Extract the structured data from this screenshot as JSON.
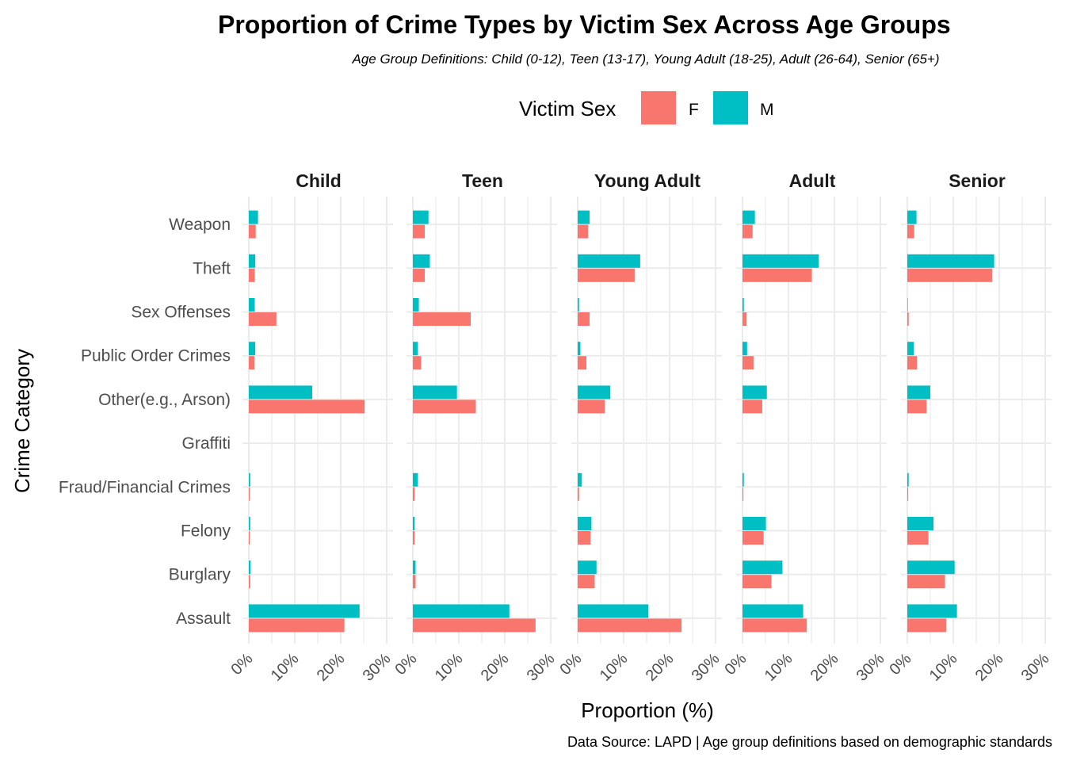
{
  "chart_data": {
    "type": "bar",
    "orientation": "horizontal",
    "faceted": true,
    "title": "Proportion of Crime Types by Victim Sex Across Age Groups",
    "subtitle": "Age Group Definitions: Child (0-12), Teen (13-17), Young Adult (18-25), Adult (26-64), Senior (65+)",
    "caption": "Data Source: LAPD | Age group definitions based on demographic standards",
    "xlabel": "Proportion (%)",
    "ylabel": "Crime Category",
    "xlim": [
      0,
      30
    ],
    "x_ticks": [
      "0%",
      "10%",
      "20%",
      "30%"
    ],
    "x_tick_values": [
      0,
      10,
      20,
      30
    ],
    "grid": true,
    "legend": {
      "title": "Victim Sex",
      "position": "top",
      "entries": [
        {
          "label": "F",
          "color": "#F8766D"
        },
        {
          "label": "M",
          "color": "#00BFC4"
        }
      ]
    },
    "categories": [
      "Weapon",
      "Theft",
      "Sex Offenses",
      "Public Order Crimes",
      "Other(e.g., Arson)",
      "Graffiti",
      "Fraud/Financial Crimes",
      "Felony",
      "Burglary",
      "Assault"
    ],
    "facets": [
      {
        "name": "Child",
        "series": [
          {
            "name": "F",
            "values": [
              1.5,
              1.3,
              6.0,
              1.2,
              25.2,
              0,
              0.2,
              0.2,
              0.3,
              20.8
            ]
          },
          {
            "name": "M",
            "values": [
              2.0,
              1.4,
              1.3,
              1.4,
              13.8,
              0,
              0.3,
              0.3,
              0.4,
              24.1
            ]
          }
        ]
      },
      {
        "name": "Teen",
        "series": [
          {
            "name": "F",
            "values": [
              2.6,
              2.6,
              12.6,
              1.8,
              13.7,
              0,
              0.4,
              0.4,
              0.6,
              26.7
            ]
          },
          {
            "name": "M",
            "values": [
              3.4,
              3.7,
              1.3,
              1.1,
              9.6,
              0,
              1.1,
              0.4,
              0.6,
              21.0
            ]
          }
        ]
      },
      {
        "name": "Young Adult",
        "series": [
          {
            "name": "F",
            "values": [
              2.3,
              12.4,
              2.6,
              1.9,
              5.9,
              0,
              0.3,
              2.8,
              3.7,
              22.6
            ]
          },
          {
            "name": "M",
            "values": [
              2.6,
              13.6,
              0.3,
              0.6,
              7.1,
              0,
              0.9,
              3.0,
              4.1,
              15.4
            ]
          }
        ]
      },
      {
        "name": "Adult",
        "series": [
          {
            "name": "F",
            "values": [
              2.2,
              15.1,
              0.9,
              2.4,
              4.3,
              0,
              0.2,
              4.6,
              6.3,
              14.0
            ]
          },
          {
            "name": "M",
            "values": [
              2.7,
              16.6,
              0.3,
              1.0,
              5.3,
              0,
              0.3,
              5.1,
              8.7,
              13.2
            ]
          }
        ]
      },
      {
        "name": "Senior",
        "series": [
          {
            "name": "F",
            "values": [
              1.5,
              18.5,
              0.3,
              2.1,
              4.2,
              0,
              0.2,
              4.6,
              8.2,
              8.5
            ]
          },
          {
            "name": "M",
            "values": [
              2.0,
              18.9,
              0.1,
              1.4,
              5.0,
              0,
              0.3,
              5.7,
              10.3,
              10.8
            ]
          }
        ]
      }
    ]
  }
}
